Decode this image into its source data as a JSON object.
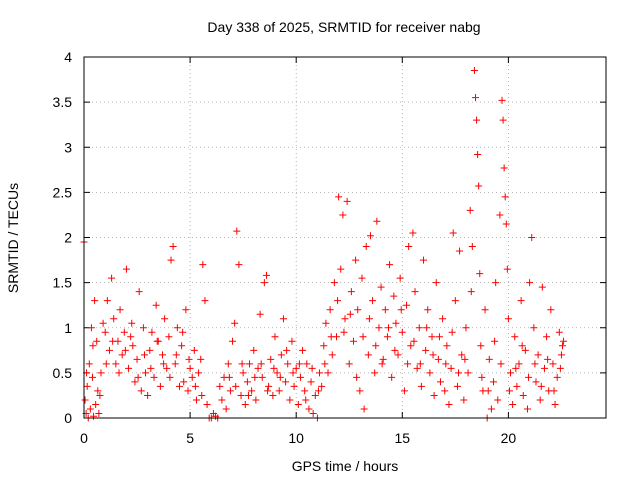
{
  "chart_data": {
    "type": "scatter",
    "title": "Day 338 of 2025, SRMTID for receiver nabg",
    "xlabel": "GPS time / hours",
    "ylabel": "SRMTID / TECUs",
    "xlim": [
      0,
      24.6
    ],
    "ylim": [
      0,
      4
    ],
    "xticks": [
      0,
      5,
      10,
      15,
      20
    ],
    "xtick_labels": [
      "0",
      "5",
      "10",
      "15",
      "20"
    ],
    "yticks": [
      0,
      0.5,
      1,
      1.5,
      2,
      2.5,
      3,
      3.5,
      4
    ],
    "ytick_labels": [
      "0",
      "0.5",
      "1",
      "1.5",
      "2",
      "2.5",
      "3",
      "3.5",
      "4"
    ],
    "grid": true,
    "marker": "plus",
    "color": "#ff0000",
    "series": [
      {
        "name": "nabg",
        "points": [
          [
            0.0,
            1.95
          ],
          [
            0.05,
            0.2
          ],
          [
            0.1,
            0.05
          ],
          [
            0.15,
            0.35
          ],
          [
            0.2,
            0.0
          ],
          [
            0.25,
            0.6
          ],
          [
            0.3,
            0.1
          ],
          [
            0.35,
            1.0
          ],
          [
            0.4,
            0.45
          ],
          [
            0.45,
            0.02
          ],
          [
            0.5,
            1.3
          ],
          [
            0.55,
            0.15
          ],
          [
            0.6,
            0.85
          ],
          [
            0.65,
            0.3
          ],
          [
            0.7,
            0.05
          ],
          [
            0.8,
            0.5
          ],
          [
            0.9,
            1.05
          ],
          [
            1.0,
            0.95
          ],
          [
            1.1,
            1.3
          ],
          [
            1.2,
            0.75
          ],
          [
            1.3,
            1.55
          ],
          [
            1.4,
            1.1
          ],
          [
            1.5,
            0.6
          ],
          [
            1.6,
            0.85
          ],
          [
            1.7,
            1.2
          ],
          [
            1.8,
            0.7
          ],
          [
            1.9,
            0.95
          ],
          [
            2.0,
            1.65
          ],
          [
            2.1,
            0.55
          ],
          [
            2.2,
            0.9
          ],
          [
            2.3,
            0.8
          ],
          [
            2.4,
            0.4
          ],
          [
            2.5,
            0.65
          ],
          [
            2.6,
            1.4
          ],
          [
            2.7,
            0.3
          ],
          [
            2.8,
            1.0
          ],
          [
            2.9,
            0.5
          ],
          [
            3.0,
            0.25
          ],
          [
            3.1,
            0.75
          ],
          [
            3.2,
            0.95
          ],
          [
            3.3,
            0.45
          ],
          [
            3.4,
            1.25
          ],
          [
            3.5,
            0.85
          ],
          [
            3.6,
            0.35
          ],
          [
            3.7,
            0.7
          ],
          [
            3.8,
            1.1
          ],
          [
            3.9,
            0.55
          ],
          [
            4.0,
            0.9
          ],
          [
            4.1,
            1.75
          ],
          [
            4.2,
            1.9
          ],
          [
            4.3,
            0.6
          ],
          [
            4.4,
            1.0
          ],
          [
            4.5,
            0.35
          ],
          [
            4.6,
            0.8
          ],
          [
            4.7,
            0.4
          ],
          [
            4.8,
            1.2
          ],
          [
            4.9,
            0.3
          ],
          [
            5.0,
            0.55
          ],
          [
            5.1,
            0.45
          ],
          [
            5.2,
            0.75
          ],
          [
            5.3,
            0.2
          ],
          [
            5.4,
            0.5
          ],
          [
            5.5,
            0.65
          ],
          [
            5.6,
            1.7
          ],
          [
            5.7,
            1.3
          ],
          [
            5.8,
            0.15
          ],
          [
            5.9,
            0.0
          ],
          [
            6.0,
            0.0
          ],
          [
            6.1,
            0.05
          ],
          [
            6.2,
            0.02
          ],
          [
            6.3,
            0.0
          ],
          [
            6.4,
            0.35
          ],
          [
            6.5,
            0.2
          ],
          [
            6.6,
            0.45
          ],
          [
            6.7,
            0.1
          ],
          [
            6.8,
            0.6
          ],
          [
            6.9,
            0.3
          ],
          [
            7.0,
            0.85
          ],
          [
            7.1,
            1.05
          ],
          [
            7.2,
            2.07
          ],
          [
            7.3,
            1.7
          ],
          [
            7.4,
            0.25
          ],
          [
            7.5,
            0.5
          ],
          [
            7.6,
            0.15
          ],
          [
            7.7,
            0.4
          ],
          [
            7.8,
            0.6
          ],
          [
            7.9,
            0.3
          ],
          [
            8.0,
            0.75
          ],
          [
            8.1,
            0.2
          ],
          [
            8.2,
            0.55
          ],
          [
            8.3,
            1.15
          ],
          [
            8.4,
            0.45
          ],
          [
            8.5,
            1.5
          ],
          [
            8.6,
            1.58
          ],
          [
            8.7,
            0.35
          ],
          [
            8.8,
            0.65
          ],
          [
            8.9,
            0.25
          ],
          [
            9.0,
            0.9
          ],
          [
            9.1,
            0.5
          ],
          [
            9.2,
            0.3
          ],
          [
            9.3,
            0.7
          ],
          [
            9.4,
            1.1
          ],
          [
            9.5,
            0.4
          ],
          [
            9.6,
            0.6
          ],
          [
            9.7,
            0.2
          ],
          [
            9.8,
            0.85
          ],
          [
            9.9,
            0.35
          ],
          [
            10.0,
            0.55
          ],
          [
            10.1,
            0.15
          ],
          [
            10.2,
            0.45
          ],
          [
            10.3,
            0.75
          ],
          [
            10.4,
            0.3
          ],
          [
            10.5,
            0.6
          ],
          [
            10.6,
            0.1
          ],
          [
            10.7,
            0.4
          ],
          [
            10.8,
            0.05
          ],
          [
            10.9,
            0.25
          ],
          [
            11.0,
            0.0
          ],
          [
            11.1,
            0.5
          ],
          [
            11.2,
            0.35
          ],
          [
            11.3,
            0.8
          ],
          [
            11.4,
            1.05
          ],
          [
            11.5,
            0.5
          ],
          [
            11.6,
            1.2
          ],
          [
            11.7,
            0.7
          ],
          [
            11.8,
            1.5
          ],
          [
            11.9,
            0.9
          ],
          [
            12.0,
            2.45
          ],
          [
            12.1,
            1.65
          ],
          [
            12.2,
            2.25
          ],
          [
            12.3,
            1.1
          ],
          [
            12.4,
            2.4
          ],
          [
            12.5,
            0.6
          ],
          [
            12.6,
            1.4
          ],
          [
            12.7,
            0.85
          ],
          [
            12.8,
            1.75
          ],
          [
            12.9,
            1.2
          ],
          [
            13.0,
            0.3
          ],
          [
            13.1,
            1.55
          ],
          [
            13.2,
            0.1
          ],
          [
            13.3,
            1.9
          ],
          [
            13.4,
            0.7
          ],
          [
            13.5,
            2.02
          ],
          [
            13.6,
            1.3
          ],
          [
            13.7,
            0.5
          ],
          [
            13.8,
            2.18
          ],
          [
            13.9,
            1.0
          ],
          [
            14.0,
            1.45
          ],
          [
            14.1,
            0.65
          ],
          [
            14.2,
            1.2
          ],
          [
            14.3,
            0.9
          ],
          [
            14.4,
            1.7
          ],
          [
            14.5,
            0.45
          ],
          [
            14.6,
            1.35
          ],
          [
            14.7,
            1.05
          ],
          [
            14.8,
            0.7
          ],
          [
            14.9,
            1.55
          ],
          [
            15.0,
            0.95
          ],
          [
            15.1,
            0.3
          ],
          [
            15.2,
            1.25
          ],
          [
            15.3,
            1.9
          ],
          [
            15.4,
            0.8
          ],
          [
            15.5,
            2.05
          ],
          [
            15.6,
            1.4
          ],
          [
            15.7,
            0.55
          ],
          [
            15.8,
            1.0
          ],
          [
            15.9,
            0.35
          ],
          [
            16.0,
            1.75
          ],
          [
            16.1,
            0.75
          ],
          [
            16.2,
            1.2
          ],
          [
            16.3,
            0.5
          ],
          [
            16.4,
            0.9
          ],
          [
            16.5,
            0.25
          ],
          [
            16.6,
            1.5
          ],
          [
            16.7,
            0.65
          ],
          [
            16.8,
            0.4
          ],
          [
            16.9,
            1.1
          ],
          [
            17.0,
            0.3
          ],
          [
            17.1,
            0.8
          ],
          [
            17.2,
            0.15
          ],
          [
            17.3,
            0.55
          ],
          [
            17.4,
            2.05
          ],
          [
            17.5,
            1.3
          ],
          [
            17.6,
            0.35
          ],
          [
            17.7,
            1.85
          ],
          [
            17.8,
            0.7
          ],
          [
            17.9,
            0.2
          ],
          [
            18.0,
            1.0
          ],
          [
            18.1,
            0.5
          ],
          [
            18.2,
            2.3
          ],
          [
            18.3,
            1.9
          ],
          [
            18.4,
            3.85
          ],
          [
            18.45,
            3.55
          ],
          [
            18.5,
            3.3
          ],
          [
            18.55,
            2.92
          ],
          [
            18.6,
            2.57
          ],
          [
            18.65,
            1.6
          ],
          [
            18.7,
            0.8
          ],
          [
            18.8,
            0.3
          ],
          [
            18.9,
            1.2
          ],
          [
            19.0,
            0.0
          ],
          [
            19.1,
            0.65
          ],
          [
            19.2,
            0.1
          ],
          [
            19.3,
            0.4
          ],
          [
            19.4,
            1.5
          ],
          [
            19.5,
            0.2
          ],
          [
            19.6,
            2.25
          ],
          [
            19.7,
            3.52
          ],
          [
            19.75,
            3.3
          ],
          [
            19.8,
            2.77
          ],
          [
            19.85,
            2.45
          ],
          [
            19.9,
            2.15
          ],
          [
            19.95,
            1.65
          ],
          [
            20.0,
            1.1
          ],
          [
            20.1,
            0.5
          ],
          [
            20.2,
            0.15
          ],
          [
            20.3,
            0.9
          ],
          [
            20.4,
            0.35
          ],
          [
            20.5,
            0.6
          ],
          [
            20.6,
            1.3
          ],
          [
            20.7,
            0.25
          ],
          [
            20.8,
            0.75
          ],
          [
            20.9,
            0.1
          ],
          [
            21.0,
            1.5
          ],
          [
            21.1,
            2.0
          ],
          [
            21.2,
            1.0
          ],
          [
            21.3,
            0.4
          ],
          [
            21.4,
            0.7
          ],
          [
            21.5,
            0.2
          ],
          [
            21.6,
            1.45
          ],
          [
            21.7,
            0.55
          ],
          [
            21.8,
            0.9
          ],
          [
            21.9,
            0.3
          ],
          [
            22.0,
            1.2
          ],
          [
            22.1,
            0.6
          ],
          [
            22.2,
            0.15
          ],
          [
            22.3,
            0.45
          ],
          [
            22.4,
            0.95
          ],
          [
            22.5,
            0.7
          ],
          [
            22.6,
            0.85
          ],
          [
            0.12,
            0.5
          ],
          [
            0.42,
            0.8
          ],
          [
            0.75,
            0.25
          ],
          [
            1.05,
            0.6
          ],
          [
            1.35,
            0.85
          ],
          [
            1.65,
            0.5
          ],
          [
            1.95,
            0.75
          ],
          [
            2.25,
            1.05
          ],
          [
            2.55,
            0.45
          ],
          [
            2.85,
            0.7
          ],
          [
            3.15,
            0.55
          ],
          [
            3.45,
            0.85
          ],
          [
            3.75,
            0.6
          ],
          [
            4.05,
            0.45
          ],
          [
            4.35,
            0.7
          ],
          [
            4.65,
            0.95
          ],
          [
            4.95,
            0.65
          ],
          [
            5.25,
            0.35
          ],
          [
            5.55,
            0.25
          ],
          [
            6.85,
            0.45
          ],
          [
            7.15,
            0.35
          ],
          [
            7.45,
            0.6
          ],
          [
            7.75,
            0.25
          ],
          [
            8.05,
            0.45
          ],
          [
            8.35,
            0.6
          ],
          [
            8.65,
            0.3
          ],
          [
            8.95,
            0.55
          ],
          [
            9.25,
            0.45
          ],
          [
            9.55,
            0.75
          ],
          [
            9.85,
            0.5
          ],
          [
            10.15,
            0.6
          ],
          [
            10.45,
            0.2
          ],
          [
            10.75,
            0.55
          ],
          [
            11.05,
            0.3
          ],
          [
            11.35,
            0.6
          ],
          [
            11.65,
            0.9
          ],
          [
            11.95,
            1.3
          ],
          [
            12.25,
            0.95
          ],
          [
            12.55,
            1.15
          ],
          [
            12.85,
            0.45
          ],
          [
            13.15,
            0.9
          ],
          [
            13.45,
            1.1
          ],
          [
            13.75,
            0.8
          ],
          [
            14.05,
            0.6
          ],
          [
            14.35,
            1.0
          ],
          [
            14.65,
            0.75
          ],
          [
            14.95,
            1.2
          ],
          [
            15.25,
            0.6
          ],
          [
            15.55,
            0.85
          ],
          [
            15.85,
            0.6
          ],
          [
            16.15,
            1.0
          ],
          [
            16.45,
            0.7
          ],
          [
            16.75,
            0.9
          ],
          [
            17.05,
            0.6
          ],
          [
            17.35,
            0.95
          ],
          [
            17.65,
            0.5
          ],
          [
            17.95,
            0.65
          ],
          [
            18.25,
            1.4
          ],
          [
            18.75,
            0.45
          ],
          [
            19.05,
            0.3
          ],
          [
            19.35,
            0.85
          ],
          [
            19.65,
            0.6
          ],
          [
            20.05,
            0.3
          ],
          [
            20.35,
            0.55
          ],
          [
            20.65,
            0.8
          ],
          [
            20.95,
            0.45
          ],
          [
            21.25,
            0.6
          ],
          [
            21.55,
            0.35
          ],
          [
            21.85,
            0.65
          ],
          [
            22.15,
            0.3
          ],
          [
            22.45,
            0.55
          ],
          [
            22.55,
            0.8
          ]
        ]
      }
    ]
  }
}
